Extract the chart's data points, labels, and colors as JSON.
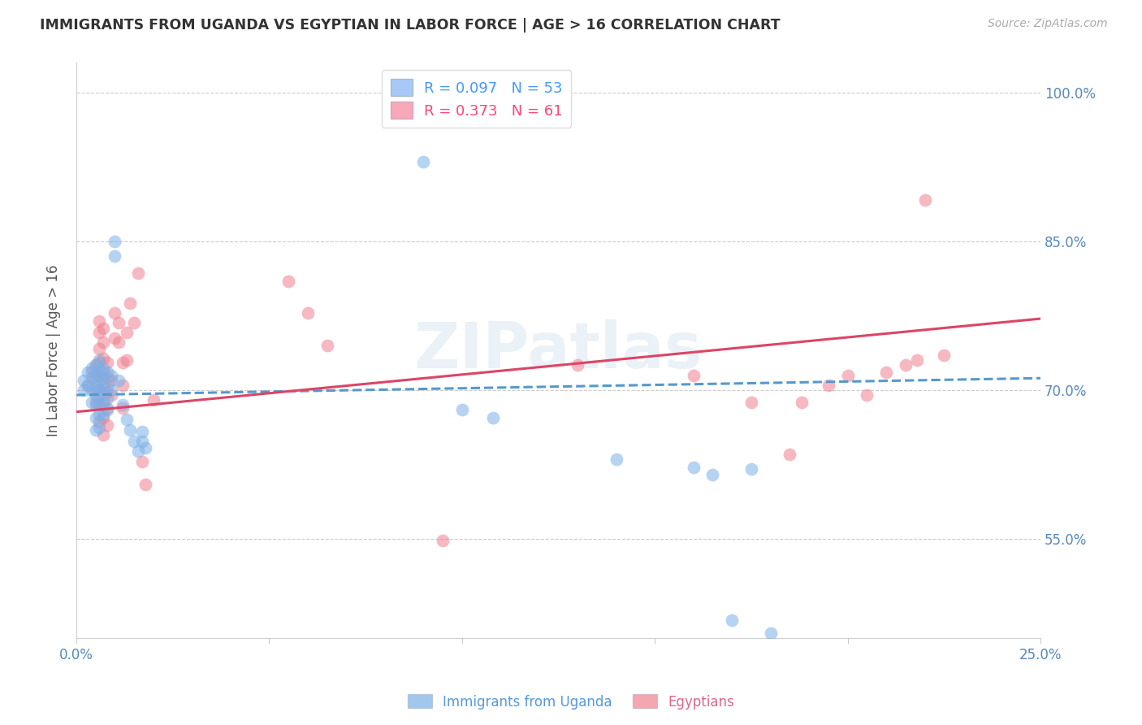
{
  "title": "IMMIGRANTS FROM UGANDA VS EGYPTIAN IN LABOR FORCE | AGE > 16 CORRELATION CHART",
  "source": "Source: ZipAtlas.com",
  "ylabel": "In Labor Force | Age > 16",
  "xlim": [
    0.0,
    0.25
  ],
  "ylim": [
    0.45,
    1.03
  ],
  "yticks": [
    0.55,
    0.7,
    0.85,
    1.0
  ],
  "ytick_labels": [
    "55.0%",
    "70.0%",
    "85.0%",
    "100.0%"
  ],
  "xticks": [
    0.0,
    0.05,
    0.1,
    0.15,
    0.2,
    0.25
  ],
  "xtick_labels": [
    "0.0%",
    "",
    "",
    "",
    "",
    "25.0%"
  ],
  "watermark": "ZIPatlas",
  "legend_line1": "R = 0.097   N = 53",
  "legend_line2": "R = 0.373   N = 61",
  "legend_color1": "#a8c8f8",
  "legend_color2": "#f8a8b8",
  "legend_text_color1": "#4499ff",
  "legend_text_color2": "#ff4477",
  "background_color": "#ffffff",
  "grid_color": "#cccccc",
  "right_axis_color": "#5588bb",
  "title_color": "#333333",
  "source_color": "#aaaaaa",
  "uganda_color": "#7ab0e8",
  "egyptian_color": "#f08090",
  "uganda_scatter": [
    [
      0.002,
      0.7
    ],
    [
      0.002,
      0.71
    ],
    [
      0.003,
      0.718
    ],
    [
      0.003,
      0.705
    ],
    [
      0.004,
      0.722
    ],
    [
      0.004,
      0.712
    ],
    [
      0.004,
      0.7
    ],
    [
      0.004,
      0.688
    ],
    [
      0.005,
      0.725
    ],
    [
      0.005,
      0.715
    ],
    [
      0.005,
      0.705
    ],
    [
      0.005,
      0.695
    ],
    [
      0.005,
      0.685
    ],
    [
      0.005,
      0.672
    ],
    [
      0.005,
      0.66
    ],
    [
      0.006,
      0.73
    ],
    [
      0.006,
      0.72
    ],
    [
      0.006,
      0.71
    ],
    [
      0.006,
      0.7
    ],
    [
      0.006,
      0.688
    ],
    [
      0.006,
      0.675
    ],
    [
      0.006,
      0.662
    ],
    [
      0.007,
      0.722
    ],
    [
      0.007,
      0.712
    ],
    [
      0.007,
      0.7
    ],
    [
      0.007,
      0.688
    ],
    [
      0.007,
      0.675
    ],
    [
      0.008,
      0.718
    ],
    [
      0.008,
      0.705
    ],
    [
      0.008,
      0.692
    ],
    [
      0.008,
      0.68
    ],
    [
      0.009,
      0.715
    ],
    [
      0.009,
      0.7
    ],
    [
      0.01,
      0.85
    ],
    [
      0.01,
      0.835
    ],
    [
      0.011,
      0.71
    ],
    [
      0.012,
      0.685
    ],
    [
      0.013,
      0.67
    ],
    [
      0.014,
      0.66
    ],
    [
      0.015,
      0.648
    ],
    [
      0.016,
      0.638
    ],
    [
      0.017,
      0.658
    ],
    [
      0.017,
      0.648
    ],
    [
      0.018,
      0.642
    ],
    [
      0.09,
      0.93
    ],
    [
      0.1,
      0.68
    ],
    [
      0.108,
      0.672
    ],
    [
      0.14,
      0.63
    ],
    [
      0.16,
      0.622
    ],
    [
      0.165,
      0.615
    ],
    [
      0.17,
      0.468
    ],
    [
      0.175,
      0.62
    ],
    [
      0.18,
      0.455
    ]
  ],
  "egyptian_scatter": [
    [
      0.003,
      0.705
    ],
    [
      0.004,
      0.718
    ],
    [
      0.005,
      0.725
    ],
    [
      0.005,
      0.712
    ],
    [
      0.005,
      0.7
    ],
    [
      0.005,
      0.688
    ],
    [
      0.006,
      0.77
    ],
    [
      0.006,
      0.758
    ],
    [
      0.006,
      0.742
    ],
    [
      0.006,
      0.728
    ],
    [
      0.006,
      0.715
    ],
    [
      0.006,
      0.7
    ],
    [
      0.006,
      0.685
    ],
    [
      0.006,
      0.668
    ],
    [
      0.007,
      0.762
    ],
    [
      0.007,
      0.748
    ],
    [
      0.007,
      0.732
    ],
    [
      0.007,
      0.718
    ],
    [
      0.007,
      0.705
    ],
    [
      0.007,
      0.688
    ],
    [
      0.007,
      0.672
    ],
    [
      0.007,
      0.655
    ],
    [
      0.008,
      0.728
    ],
    [
      0.008,
      0.712
    ],
    [
      0.008,
      0.698
    ],
    [
      0.008,
      0.682
    ],
    [
      0.008,
      0.665
    ],
    [
      0.009,
      0.71
    ],
    [
      0.009,
      0.695
    ],
    [
      0.01,
      0.778
    ],
    [
      0.01,
      0.752
    ],
    [
      0.011,
      0.768
    ],
    [
      0.011,
      0.748
    ],
    [
      0.012,
      0.728
    ],
    [
      0.012,
      0.705
    ],
    [
      0.012,
      0.682
    ],
    [
      0.013,
      0.758
    ],
    [
      0.013,
      0.73
    ],
    [
      0.014,
      0.788
    ],
    [
      0.015,
      0.768
    ],
    [
      0.016,
      0.818
    ],
    [
      0.017,
      0.628
    ],
    [
      0.018,
      0.605
    ],
    [
      0.02,
      0.69
    ],
    [
      0.055,
      0.81
    ],
    [
      0.06,
      0.778
    ],
    [
      0.065,
      0.745
    ],
    [
      0.095,
      0.548
    ],
    [
      0.13,
      0.725
    ],
    [
      0.16,
      0.715
    ],
    [
      0.175,
      0.688
    ],
    [
      0.185,
      0.635
    ],
    [
      0.188,
      0.688
    ],
    [
      0.195,
      0.705
    ],
    [
      0.2,
      0.715
    ],
    [
      0.205,
      0.695
    ],
    [
      0.21,
      0.718
    ],
    [
      0.215,
      0.725
    ],
    [
      0.218,
      0.73
    ],
    [
      0.22,
      0.892
    ],
    [
      0.225,
      0.735
    ]
  ],
  "uganda_trendline_x": [
    0.0,
    0.25
  ],
  "uganda_trendline_y": [
    0.695,
    0.712
  ],
  "egyptian_trendline_x": [
    0.0,
    0.25
  ],
  "egyptian_trendline_y": [
    0.678,
    0.772
  ]
}
